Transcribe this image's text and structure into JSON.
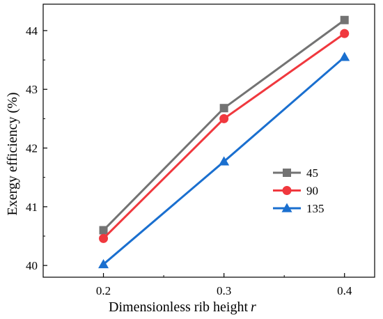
{
  "chart_data": {
    "type": "line",
    "title": "",
    "xlabel": "Dimensionless rib height",
    "xlabel_var": "r",
    "ylabel": "Exergy efficiency (%)",
    "x": [
      0.2,
      0.3,
      0.4
    ],
    "x_tick_labels": [
      "0.2",
      "0.3",
      "0.4"
    ],
    "xlim": [
      0.15,
      0.425
    ],
    "ylim": [
      39.8,
      44.45
    ],
    "y_ticks": [
      40,
      41,
      42,
      43,
      44
    ],
    "y_tick_labels": [
      "40",
      "41",
      "42",
      "43",
      "44"
    ],
    "grid": false,
    "legend_position": "center-right",
    "series": [
      {
        "name": "45",
        "values": [
          40.6,
          42.68,
          44.18
        ],
        "color": "#737373",
        "marker": "square"
      },
      {
        "name": "90",
        "values": [
          40.46,
          42.5,
          43.95
        ],
        "color": "#f0383e",
        "marker": "circle"
      },
      {
        "name": "135",
        "values": [
          40.02,
          41.77,
          43.55
        ],
        "color": "#1a6fcf",
        "marker": "triangle"
      }
    ]
  }
}
